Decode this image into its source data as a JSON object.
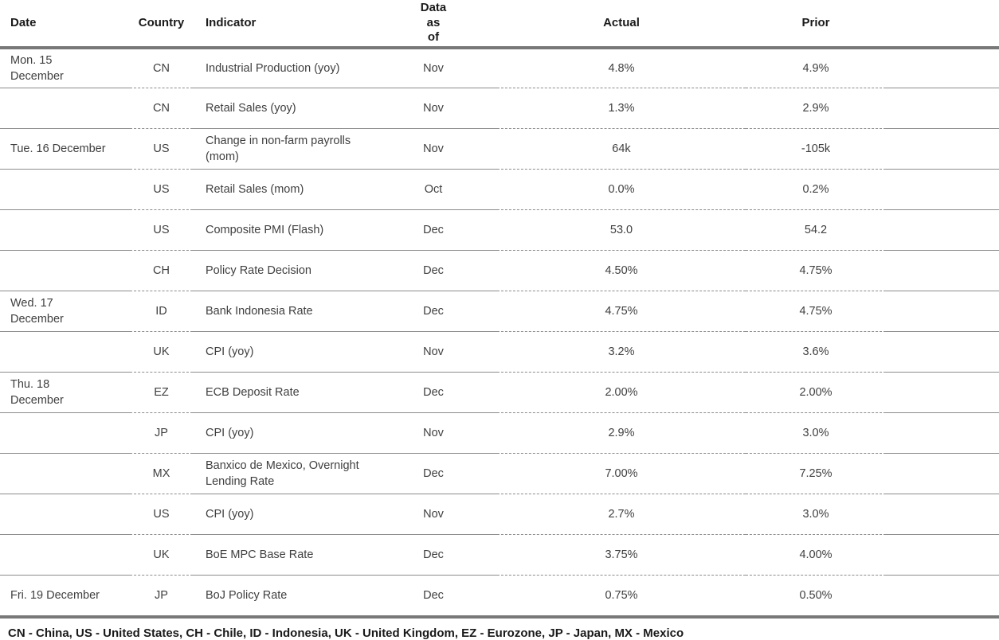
{
  "table": {
    "columns": {
      "date": {
        "label": "Date"
      },
      "country": {
        "label": "Country"
      },
      "indicator": {
        "label": "Indicator"
      },
      "data_as_of": {
        "label": "Data\nas\nof"
      },
      "actual": {
        "label": "Actual"
      },
      "prior": {
        "label": "Prior"
      }
    },
    "rows": [
      {
        "date": "Mon. 15\nDecember",
        "country": "CN",
        "indicator": "Industrial Production (yoy)",
        "data_as_of": "Nov",
        "actual": "4.8%",
        "prior": "4.9%"
      },
      {
        "date": "",
        "country": "CN",
        "indicator": "Retail Sales (yoy)",
        "data_as_of": "Nov",
        "actual": "1.3%",
        "prior": "2.9%"
      },
      {
        "date": "Tue. 16 December",
        "country": "US",
        "indicator": "Change in non-farm payrolls (mom)",
        "data_as_of": "Nov",
        "actual": "64k",
        "prior": "-105k"
      },
      {
        "date": "",
        "country": "US",
        "indicator": "Retail Sales (mom)",
        "data_as_of": "Oct",
        "actual": "0.0%",
        "prior": "0.2%"
      },
      {
        "date": "",
        "country": "US",
        "indicator": "Composite PMI (Flash)",
        "data_as_of": "Dec",
        "actual": "53.0",
        "prior": "54.2"
      },
      {
        "date": "",
        "country": "CH",
        "indicator": "Policy Rate Decision",
        "data_as_of": "Dec",
        "actual": "4.50%",
        "prior": "4.75%"
      },
      {
        "date": "Wed. 17\nDecember",
        "country": "ID",
        "indicator": "Bank Indonesia Rate",
        "data_as_of": "Dec",
        "actual": "4.75%",
        "prior": "4.75%"
      },
      {
        "date": "",
        "country": "UK",
        "indicator": "CPI (yoy)",
        "data_as_of": "Nov",
        "actual": "3.2%",
        "prior": "3.6%"
      },
      {
        "date": "Thu. 18\nDecember",
        "country": "EZ",
        "indicator": "ECB Deposit Rate",
        "data_as_of": "Dec",
        "actual": "2.00%",
        "prior": "2.00%"
      },
      {
        "date": "",
        "country": "JP",
        "indicator": "CPI (yoy)",
        "data_as_of": "Nov",
        "actual": "2.9%",
        "prior": "3.0%"
      },
      {
        "date": "",
        "country": "MX",
        "indicator": "Banxico de Mexico, Overnight Lending Rate",
        "data_as_of": "Dec",
        "actual": "7.00%",
        "prior": "7.25%"
      },
      {
        "date": "",
        "country": "US",
        "indicator": "CPI (yoy)",
        "data_as_of": "Nov",
        "actual": "2.7%",
        "prior": "3.0%"
      },
      {
        "date": "",
        "country": "UK",
        "indicator": "BoE MPC Base Rate",
        "data_as_of": "Dec",
        "actual": "3.75%",
        "prior": "4.00%"
      },
      {
        "date": "Fri. 19 December",
        "country": "JP",
        "indicator": "BoJ Policy Rate",
        "data_as_of": "Dec",
        "actual": "0.75%",
        "prior": "0.50%"
      }
    ]
  },
  "footer": {
    "legend": "CN - China, US - United States, CH - Chile, ID - Indonesia, UK - United Kingdom, EZ - Eurozone, JP - Japan, MX - Mexico"
  },
  "colors": {
    "rule_thick": "#787878",
    "rule_thin": "#8c8c8c",
    "text_primary": "#1a1a1a",
    "text_body": "#3f3f3f",
    "background": "#ffffff"
  }
}
